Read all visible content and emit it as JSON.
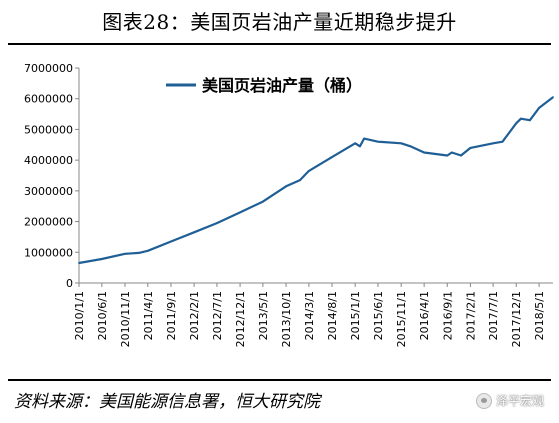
{
  "header": {
    "title": "图表28：美国页岩油产量近期稳步提升"
  },
  "footer": {
    "source": "资料来源：美国能源信息署，恒大研究院",
    "watermark": "泽平宏观",
    "watermark_icon": "wechat-icon"
  },
  "chart_data": {
    "type": "line",
    "title": "",
    "xlabel": "",
    "ylabel": "",
    "ylim": [
      0,
      7000000
    ],
    "yticks": [
      0,
      1000000,
      2000000,
      3000000,
      4000000,
      5000000,
      6000000,
      7000000
    ],
    "ytick_labels": [
      "0",
      "1000000",
      "2000000",
      "3000000",
      "4000000",
      "5000000",
      "6000000",
      "7000000"
    ],
    "xticks": [
      "2010/1/1",
      "2010/6/1",
      "2010/11/1",
      "2011/4/1",
      "2011/9/1",
      "2012/2/1",
      "2012/7/1",
      "2012/12/1",
      "2013/5/1",
      "2013/10/1",
      "2014/3/1",
      "2014/8/1",
      "2015/1/1",
      "2015/6/1",
      "2015/11/1",
      "2016/4/1",
      "2016/9/1",
      "2017/2/1",
      "2017/7/1",
      "2017/12/1",
      "2018/5/1"
    ],
    "grid": false,
    "legend": "top-left",
    "color": "#1f5f96",
    "series": [
      {
        "name": "美国页岩油产量（桶）",
        "x": [
          "2010/1/1",
          "2010/6/1",
          "2010/11/1",
          "2011/2/1",
          "2011/4/1",
          "2011/9/1",
          "2012/2/1",
          "2012/7/1",
          "2012/12/1",
          "2013/5/1",
          "2013/10/1",
          "2014/1/1",
          "2014/3/1",
          "2014/8/1",
          "2015/1/1",
          "2015/2/1",
          "2015/3/1",
          "2015/6/1",
          "2015/11/1",
          "2016/1/1",
          "2016/4/1",
          "2016/9/1",
          "2016/10/1",
          "2016/12/1",
          "2017/2/1",
          "2017/7/1",
          "2017/9/1",
          "2017/12/1",
          "2018/1/1",
          "2018/3/1",
          "2018/5/1",
          "2018/8/1"
        ],
        "values": [
          650000,
          780000,
          950000,
          980000,
          1050000,
          1350000,
          1650000,
          1950000,
          2300000,
          2650000,
          3150000,
          3350000,
          3650000,
          4100000,
          4550000,
          4450000,
          4700000,
          4600000,
          4550000,
          4450000,
          4250000,
          4150000,
          4250000,
          4150000,
          4400000,
          4550000,
          4600000,
          5200000,
          5350000,
          5300000,
          5700000,
          6050000
        ]
      }
    ]
  }
}
